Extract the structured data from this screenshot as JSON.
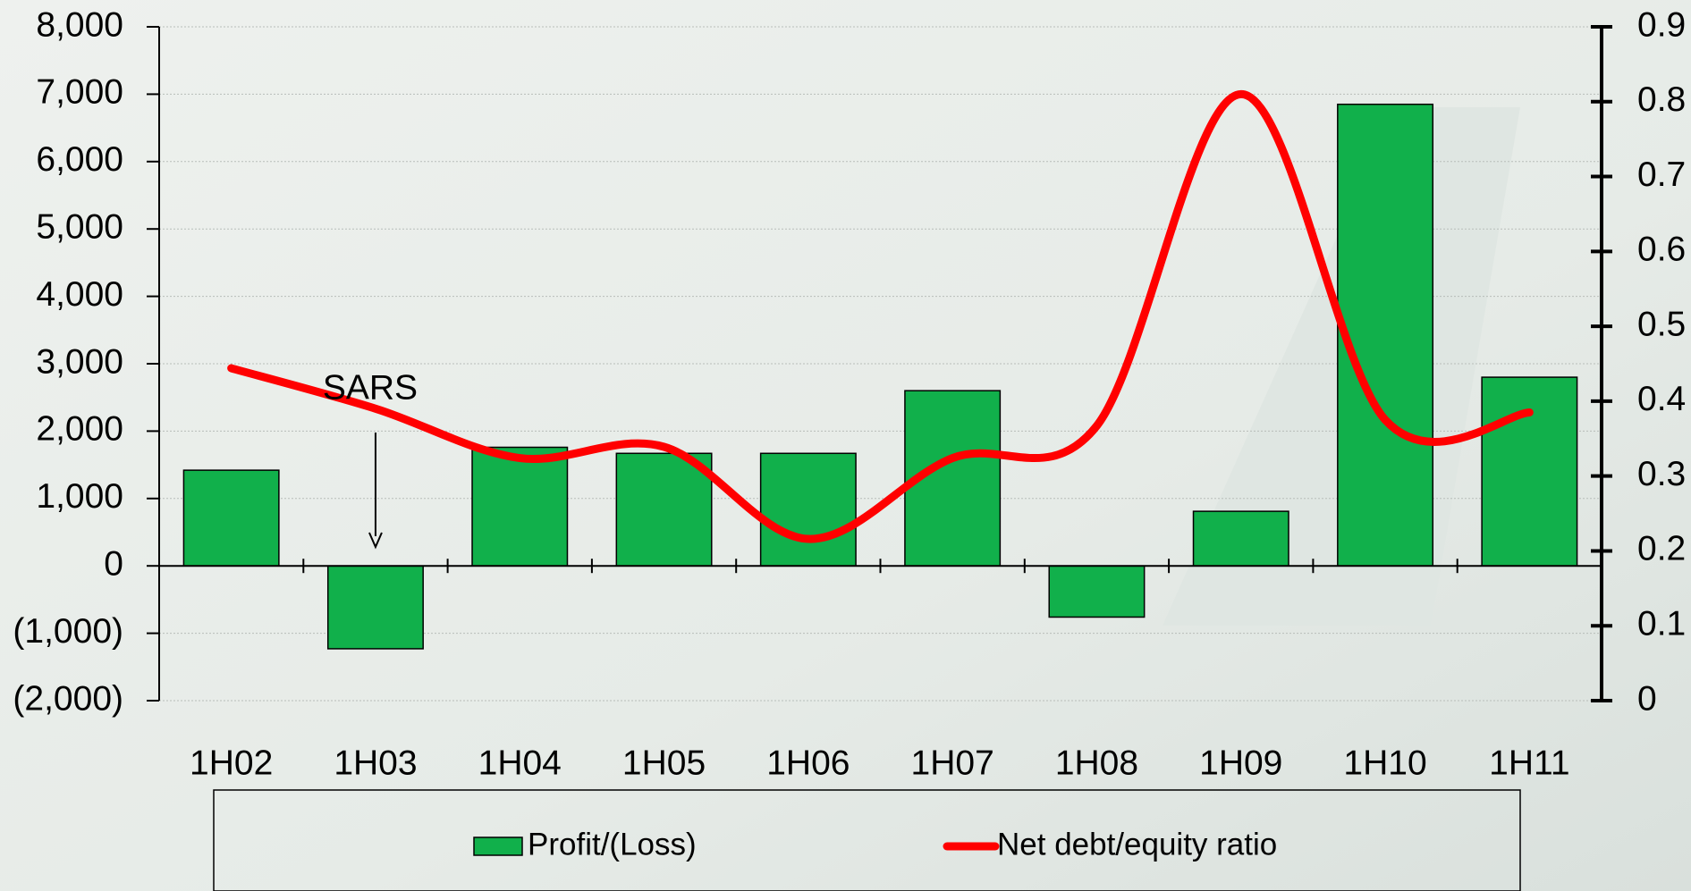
{
  "chart_data": {
    "type": "bar_line",
    "categories": [
      "1H02",
      "1H03",
      "1H04",
      "1H05",
      "1H06",
      "1H07",
      "1H08",
      "1H09",
      "1H10",
      "1H11"
    ],
    "series": [
      {
        "name": "Profit/(Loss)",
        "type": "bar",
        "color": "#11b04b",
        "values": [
          1420,
          -1230,
          1760,
          1670,
          1670,
          2600,
          -760,
          810,
          6850,
          2800
        ]
      },
      {
        "name": "Net debt/equity ratio",
        "type": "line",
        "axis": "y2",
        "color": "#ff0000",
        "values": [
          0.444,
          0.39,
          0.324,
          0.339,
          0.216,
          0.324,
          0.367,
          0.81,
          0.375,
          0.385
        ]
      }
    ],
    "ylim": [
      -2000,
      8000
    ],
    "yticks": [
      {
        "value": -2000,
        "label": "(2,000)"
      },
      {
        "value": -1000,
        "label": "(1,000)"
      },
      0,
      {
        "value": 1000,
        "label": "1,000"
      },
      {
        "value": 2000,
        "label": "2,000"
      },
      {
        "value": 3000,
        "label": "3,000"
      },
      {
        "value": 4000,
        "label": "4,000"
      },
      {
        "value": 5000,
        "label": "5,000"
      },
      {
        "value": 6000,
        "label": "6,000"
      },
      {
        "value": 7000,
        "label": "7,000"
      },
      {
        "value": 8000,
        "label": "8,000"
      }
    ],
    "y2lim": [
      0,
      0.9
    ],
    "y2ticks": [
      0,
      0.1,
      0.2,
      0.3,
      0.4,
      0.5,
      0.6,
      0.7,
      0.8,
      0.9
    ],
    "grid": true,
    "legend": "bottom",
    "annotations": [
      {
        "text": "SARS",
        "category": 1
      }
    ]
  }
}
